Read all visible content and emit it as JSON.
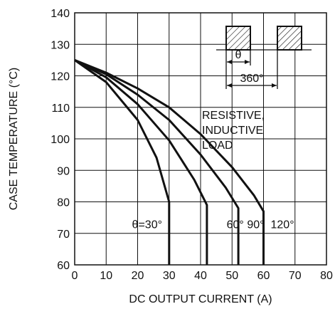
{
  "chart_data": {
    "type": "line",
    "xlabel": "DC OUTPUT CURRENT    (A)",
    "ylabel": "CASE TEMPERATURE    (°C)",
    "xlim": [
      0,
      80
    ],
    "ylim": [
      60,
      140
    ],
    "x_ticks": [
      "0",
      "10",
      "20",
      "30",
      "40",
      "50",
      "60",
      "70",
      "80"
    ],
    "y_ticks": [
      "60",
      "70",
      "80",
      "90",
      "100",
      "110",
      "120",
      "130",
      "140"
    ],
    "grid": true,
    "annotation": [
      "RESISTIVE,",
      "INDUCTIVE",
      "LOAD"
    ],
    "inset": {
      "theta_label": "θ",
      "period_label": "360°"
    },
    "series": [
      {
        "name": "θ=30°",
        "points": [
          [
            0,
            125
          ],
          [
            10,
            118
          ],
          [
            20,
            106
          ],
          [
            26,
            94
          ],
          [
            30,
            80
          ],
          [
            30,
            60
          ]
        ]
      },
      {
        "name": "60°",
        "points": [
          [
            0,
            125
          ],
          [
            10,
            119.5
          ],
          [
            20,
            111
          ],
          [
            30,
            99.5
          ],
          [
            38,
            87
          ],
          [
            42,
            79
          ],
          [
            42,
            60
          ]
        ]
      },
      {
        "name": "90°",
        "points": [
          [
            0,
            125
          ],
          [
            10,
            120.5
          ],
          [
            20,
            114
          ],
          [
            30,
            106
          ],
          [
            40,
            95
          ],
          [
            48,
            84.5
          ],
          [
            52,
            78
          ],
          [
            52,
            60
          ]
        ]
      },
      {
        "name": "120°",
        "points": [
          [
            0,
            125
          ],
          [
            10,
            121
          ],
          [
            20,
            116
          ],
          [
            30,
            110
          ],
          [
            40,
            101.5
          ],
          [
            50,
            91
          ],
          [
            57,
            82
          ],
          [
            60,
            77
          ],
          [
            60,
            60
          ]
        ]
      }
    ],
    "series_label_positions": [
      [
        23,
        73
      ],
      [
        51,
        73
      ],
      [
        57.5,
        73
      ],
      [
        66,
        73
      ]
    ]
  }
}
